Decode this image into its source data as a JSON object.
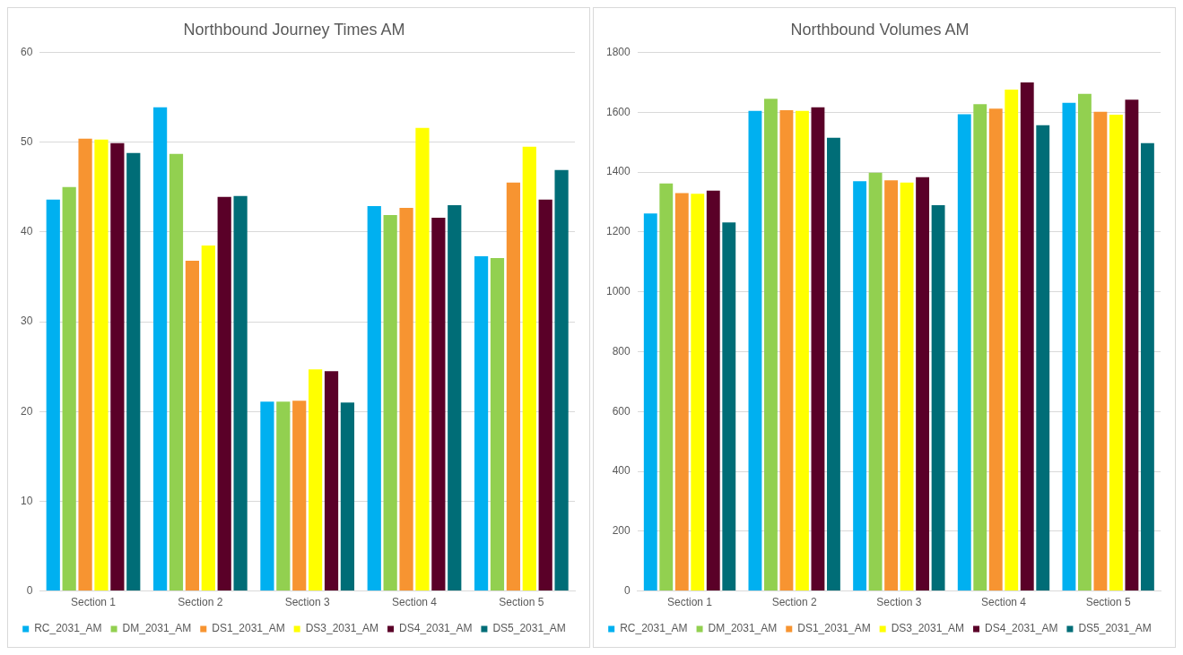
{
  "chart_data": [
    {
      "type": "bar",
      "title": "Northbound Journey Times AM",
      "categories": [
        "Section 1",
        "Section 2",
        "Section 3",
        "Section 4",
        "Section 5"
      ],
      "ylim": [
        0,
        60
      ],
      "yticks": [
        0,
        10,
        20,
        30,
        40,
        50,
        60
      ],
      "grid": "y",
      "legend": "bottom",
      "series": [
        {
          "name": "RC_2031_AM",
          "color": "#00b0f0",
          "values": [
            43.6,
            53.9,
            21.1,
            42.9,
            37.3
          ]
        },
        {
          "name": "DM_2031_AM",
          "color": "#92d050",
          "values": [
            45.0,
            48.7,
            21.1,
            41.9,
            37.1
          ]
        },
        {
          "name": "DS1_2031_AM",
          "color": "#f79431",
          "values": [
            50.4,
            36.8,
            21.2,
            42.7,
            45.5
          ]
        },
        {
          "name": "DS3_2031_AM",
          "color": "#ffff00",
          "values": [
            50.3,
            38.5,
            24.7,
            51.6,
            49.5
          ]
        },
        {
          "name": "DS4_2031_AM",
          "color": "#5a0028",
          "values": [
            49.9,
            43.9,
            24.5,
            41.6,
            43.6
          ]
        },
        {
          "name": "DS5_2031_AM",
          "color": "#006d77",
          "values": [
            48.8,
            44.0,
            21.0,
            43.0,
            46.9
          ]
        }
      ]
    },
    {
      "type": "bar",
      "title": "Northbound Volumes AM",
      "categories": [
        "Section 1",
        "Section 2",
        "Section 3",
        "Section 4",
        "Section 5"
      ],
      "ylim": [
        0,
        1800
      ],
      "yticks": [
        0,
        200,
        400,
        600,
        800,
        1000,
        1200,
        1400,
        1600,
        1800
      ],
      "grid": "y",
      "legend": "bottom",
      "series": [
        {
          "name": "RC_2031_AM",
          "color": "#00b0f0",
          "values": [
            1262,
            1605,
            1370,
            1594,
            1632
          ]
        },
        {
          "name": "DM_2031_AM",
          "color": "#92d050",
          "values": [
            1362,
            1645,
            1398,
            1627,
            1662
          ]
        },
        {
          "name": "DS1_2031_AM",
          "color": "#f79431",
          "values": [
            1330,
            1607,
            1373,
            1612,
            1602
          ]
        },
        {
          "name": "DS3_2031_AM",
          "color": "#ffff00",
          "values": [
            1328,
            1605,
            1365,
            1676,
            1592
          ]
        },
        {
          "name": "DS4_2031_AM",
          "color": "#5a0028",
          "values": [
            1338,
            1617,
            1383,
            1700,
            1642
          ]
        },
        {
          "name": "DS5_2031_AM",
          "color": "#006d77",
          "values": [
            1232,
            1515,
            1290,
            1557,
            1497
          ]
        }
      ]
    }
  ]
}
